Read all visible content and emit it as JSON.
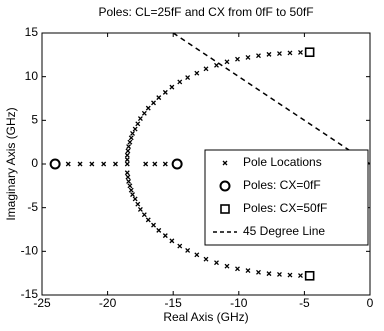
{
  "chart_data": {
    "type": "scatter",
    "title": "Poles: CL=25fF and CX from 0fF to 50fF",
    "x_label": "Real Axis (GHz)",
    "y_label": "Imaginary Axis (GHz)",
    "xlim": [
      -25,
      0
    ],
    "ylim": [
      -15,
      15
    ],
    "xticks": [
      -25,
      -20,
      -15,
      -10,
      -5,
      0
    ],
    "yticks": [
      -15,
      -10,
      -5,
      0,
      5,
      10,
      15
    ],
    "legend": "right",
    "series": [
      {
        "name": "Pole Locations",
        "marker": "x",
        "color": "#000000",
        "x": [
          -23,
          -22.1,
          -21.2,
          -20.3,
          -19.4,
          -17.1,
          -16.4,
          -15.6,
          -18.5,
          -18.5,
          -18.5,
          -18.45,
          -18.4,
          -18.3,
          -18.2,
          -18.1,
          -17.9,
          -17.7,
          -17.5,
          -17.2,
          -16.9,
          -16.5,
          -16.1,
          -15.6,
          -15.1,
          -14.5,
          -13.9,
          -13.2,
          -12.5,
          -11.7,
          -10.9,
          -10.1,
          -9.3,
          -8.5,
          -7.7,
          -6.9,
          -6.1,
          -5.3,
          -18.5,
          -18.45,
          -18.4,
          -18.3,
          -18.2,
          -18.1,
          -17.9,
          -17.7,
          -17.5,
          -17.2,
          -16.9,
          -16.5,
          -16.1,
          -15.6,
          -15.1,
          -14.5,
          -13.9,
          -13.2,
          -12.5,
          -11.7,
          -10.9,
          -10.1,
          -9.3,
          -8.5,
          -7.7,
          -6.9,
          -6.1,
          -5.3
        ],
        "y": [
          0,
          0,
          0,
          0,
          0,
          0,
          0,
          0,
          0,
          0.5,
          1,
          1.5,
          2,
          2.5,
          3,
          3.5,
          4,
          4.6,
          5.2,
          5.8,
          6.4,
          7,
          7.6,
          8.2,
          8.8,
          9.4,
          9.9,
          10.4,
          10.9,
          11.3,
          11.7,
          12,
          12.2,
          12.4,
          12.55,
          12.65,
          12.72,
          12.77,
          -1,
          -1.5,
          -2,
          -2.5,
          -3,
          -3.5,
          -4,
          -4.6,
          -5.2,
          -5.8,
          -6.4,
          -7,
          -7.6,
          -8.2,
          -8.8,
          -9.4,
          -9.9,
          -10.4,
          -10.9,
          -11.3,
          -11.7,
          -12,
          -12.2,
          -12.4,
          -12.55,
          -12.65,
          -12.72,
          -12.77
        ]
      },
      {
        "name": "Poles: CX=0fF",
        "marker": "circle",
        "color": "#000000",
        "x": [
          -24,
          -14.7
        ],
        "y": [
          0,
          0
        ]
      },
      {
        "name": "Poles: CX=50fF",
        "marker": "square",
        "color": "#000000",
        "x": [
          -4.6,
          -4.6
        ],
        "y": [
          12.8,
          -12.8
        ]
      },
      {
        "name": "45 Degree Line",
        "marker": "dashed-line",
        "color": "#000000",
        "x": [
          -15,
          0
        ],
        "y": [
          15,
          0
        ]
      }
    ]
  }
}
